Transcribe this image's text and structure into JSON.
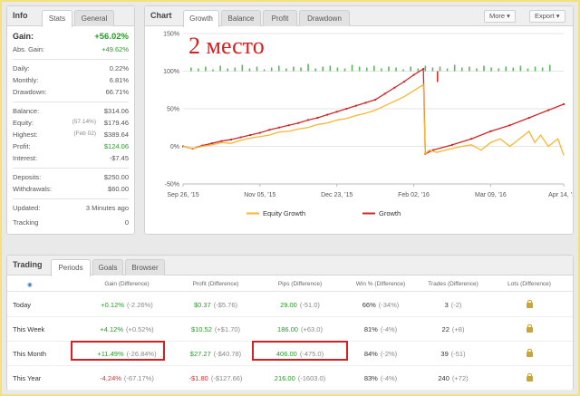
{
  "info": {
    "tabs": [
      "Info",
      "Stats",
      "General"
    ],
    "gain": {
      "label": "Gain:",
      "value": "+56.02%"
    },
    "abs_gain": {
      "label": "Abs. Gain:",
      "value": "+49.62%"
    },
    "daily": {
      "label": "Daily:",
      "value": "0.22%"
    },
    "monthly": {
      "label": "Monthly:",
      "value": "6.81%"
    },
    "drawdown": {
      "label": "Drawdown:",
      "value": "66.71%"
    },
    "balance": {
      "label": "Balance:",
      "value": "$314.06"
    },
    "equity": {
      "label": "Equity:",
      "note": "(57.14%)",
      "value": "$179.46"
    },
    "highest": {
      "label": "Highest:",
      "note": "(Feb 02)",
      "value": "$389.64"
    },
    "profit": {
      "label": "Profit:",
      "value": "$124.06"
    },
    "interest": {
      "label": "Interest:",
      "value": "-$7.45"
    },
    "deposits": {
      "label": "Deposits:",
      "value": "$250.00"
    },
    "withdrawals": {
      "label": "Withdrawals:",
      "value": "$60.00"
    },
    "updated": {
      "label": "Updated:",
      "value": "3 Minutes ago"
    },
    "tracking": {
      "label": "Tracking",
      "value": "0"
    }
  },
  "chart_panel": {
    "tabs": [
      "Chart",
      "Growth",
      "Balance",
      "Profit",
      "Drawdown"
    ],
    "more_label": "More ▾",
    "export_label": "Export ▾",
    "overlay_text": "2 место"
  },
  "chart_data": {
    "type": "line",
    "x_ticks": [
      "Sep 26, '15",
      "Nov 05, '15",
      "Dec 23, '15",
      "Feb 02, '16",
      "Mar 09, '16",
      "Apr 14, '16"
    ],
    "y_ticks": [
      "150%",
      "100%",
      "50%",
      "0%",
      "-50%"
    ],
    "ylim": [
      -50,
      150
    ],
    "grid": true,
    "legend_position": "bottom",
    "series": [
      {
        "name": "Equity Growth",
        "color": "#f5b731",
        "x": [
          0,
          5,
          10,
          15,
          20,
          25,
          30,
          35,
          40,
          45,
          50,
          55,
          60,
          65,
          70,
          75,
          80,
          85,
          90,
          95,
          100,
          105,
          110,
          115,
          120,
          125,
          126,
          128,
          132,
          138,
          145,
          150,
          155,
          160,
          165,
          170,
          175,
          180,
          183,
          186,
          190,
          195,
          198
        ],
        "values": [
          0,
          -3,
          0,
          2,
          5,
          4,
          8,
          11,
          13,
          15,
          19,
          20,
          23,
          25,
          29,
          31,
          35,
          37,
          41,
          44,
          48,
          54,
          60,
          66,
          74,
          82,
          -10,
          -5,
          -8,
          -4,
          0,
          2,
          -5,
          5,
          10,
          0,
          10,
          20,
          5,
          15,
          0,
          10,
          -12
        ]
      },
      {
        "name": "Growth",
        "color": "#cc2a2a",
        "x": [
          0,
          5,
          10,
          15,
          20,
          25,
          30,
          35,
          40,
          45,
          50,
          55,
          60,
          65,
          70,
          75,
          80,
          85,
          90,
          95,
          100,
          105,
          110,
          115,
          120,
          125,
          126,
          130,
          140,
          150,
          160,
          170,
          180,
          190,
          198
        ],
        "values": [
          0,
          -3,
          1,
          4,
          7,
          9,
          12,
          15,
          18,
          22,
          25,
          28,
          31,
          35,
          38,
          42,
          46,
          50,
          54,
          58,
          62,
          70,
          78,
          86,
          95,
          103,
          -10,
          -5,
          2,
          10,
          20,
          28,
          38,
          48,
          56
        ]
      }
    ],
    "volume_bars": [
      4,
      3,
      5,
      2,
      6,
      3,
      4,
      7,
      3,
      5,
      2,
      4,
      6,
      3,
      5,
      4,
      8,
      3,
      5,
      6,
      4,
      3,
      7,
      5,
      4,
      6,
      3,
      5,
      4,
      2,
      5,
      3,
      6,
      4,
      5,
      3,
      7,
      4,
      5,
      3,
      6,
      4,
      3,
      5,
      4,
      6,
      3,
      5,
      4,
      7
    ]
  },
  "trading": {
    "title": "Trading",
    "tabs": [
      "Periods",
      "Goals",
      "Browser"
    ],
    "columns": [
      "Gain (Difference)",
      "Profit (Difference)",
      "Pips (Difference)",
      "Win % (Difference)",
      "Trades (Difference)",
      "Lots (Difference)"
    ],
    "rows": [
      {
        "name": "Today",
        "gain": "+0.12%",
        "gain_diff": "(-2.26%)",
        "profit": "$0.37",
        "profit_diff": "(-$5.76)",
        "pips": "29.00",
        "pips_diff": "(-51.0)",
        "win": "66%",
        "win_diff": "(-34%)",
        "trades": "3",
        "trades_diff": "(-2)"
      },
      {
        "name": "This Week",
        "gain": "+4.12%",
        "gain_diff": "(+0.52%)",
        "profit": "$10.52",
        "profit_diff": "(+$1.70)",
        "pips": "186.00",
        "pips_diff": "(+63.0)",
        "win": "81%",
        "win_diff": "(-4%)",
        "trades": "22",
        "trades_diff": "(+8)"
      },
      {
        "name": "This Month",
        "gain": "+11.49%",
        "gain_diff": "(-26.84%)",
        "profit": "$27.27",
        "profit_diff": "(-$40.78)",
        "pips": "406.00",
        "pips_diff": "(-475.0)",
        "win": "84%",
        "win_diff": "(-2%)",
        "trades": "39",
        "trades_diff": "(-51)"
      },
      {
        "name": "This Year",
        "gain": "-4.24%",
        "gain_diff": "(-67.17%)",
        "profit": "-$1.80",
        "profit_diff": "(-$127.66)",
        "pips": "216.00",
        "pips_diff": "(-1603.0)",
        "win": "83%",
        "win_diff": "(-4%)",
        "trades": "240",
        "trades_diff": "(+72)"
      }
    ]
  }
}
